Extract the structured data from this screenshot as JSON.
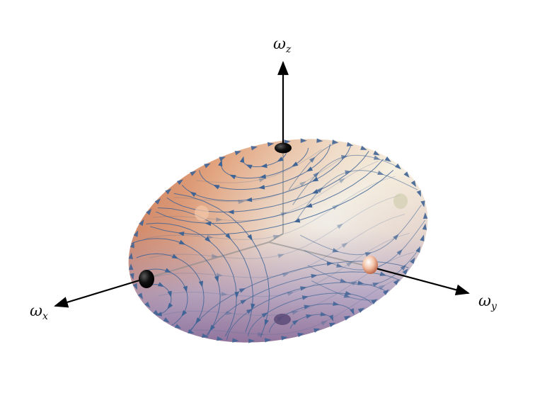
{
  "axes": {
    "z": {
      "symbol": "ω",
      "subscript": "z"
    },
    "x": {
      "symbol": "ω",
      "subscript": "x"
    },
    "y": {
      "symbol": "ω",
      "subscript": "y"
    }
  },
  "colors": {
    "flow": "#3f6496",
    "axis": "#000000",
    "shell_warm": "#e8a46e",
    "shell_cool": "#9a9cd6",
    "shell_light": "#fbf9e9"
  },
  "markers": [
    {
      "name": "fixed-point-z-top",
      "kind": "stable"
    },
    {
      "name": "fixed-point-x-front",
      "kind": "stable"
    },
    {
      "name": "fixed-point-z-bottom",
      "kind": "stable-hidden"
    },
    {
      "name": "fixed-point-y-front",
      "kind": "saddle"
    },
    {
      "name": "fixed-point-y-back",
      "kind": "saddle-hidden"
    },
    {
      "name": "fixed-point-x-back",
      "kind": "stable-hidden-faint"
    }
  ]
}
